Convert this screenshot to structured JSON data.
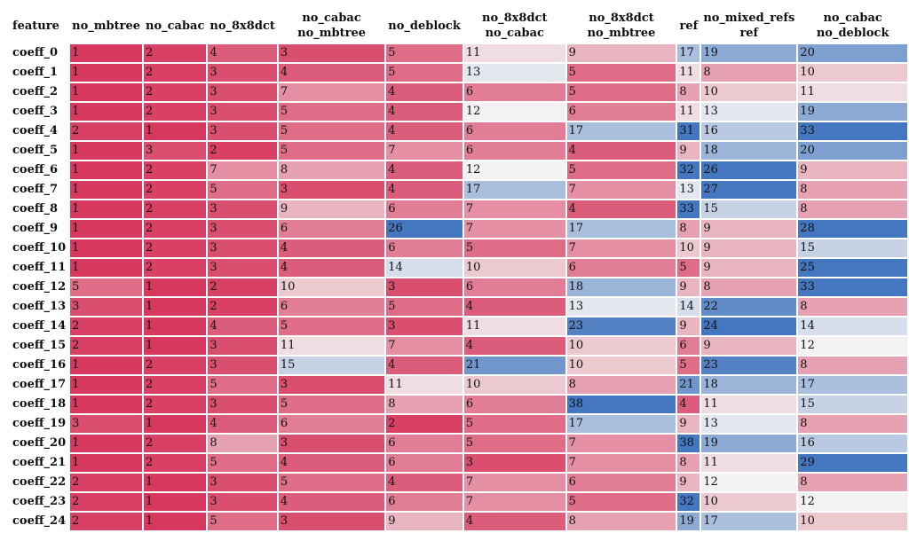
{
  "chart_data": {
    "type": "table",
    "row_header": "feature",
    "columns": [
      [
        "no_mbtree"
      ],
      [
        "no_cabac"
      ],
      [
        "no_8x8dct"
      ],
      [
        "no_cabac",
        "no_mbtree"
      ],
      [
        "no_deblock"
      ],
      [
        "no_8x8dct",
        "no_cabac"
      ],
      [
        "no_8x8dct",
        "no_mbtree"
      ],
      [
        "ref"
      ],
      [
        "no_mixed_refs",
        "ref"
      ],
      [
        "no_cabac",
        "no_deblock"
      ]
    ],
    "rows": [
      "coeff_0",
      "coeff_1",
      "coeff_2",
      "coeff_3",
      "coeff_4",
      "coeff_5",
      "coeff_6",
      "coeff_7",
      "coeff_8",
      "coeff_9",
      "coeff_10",
      "coeff_11",
      "coeff_12",
      "coeff_13",
      "coeff_14",
      "coeff_15",
      "coeff_16",
      "coeff_17",
      "coeff_18",
      "coeff_19",
      "coeff_20",
      "coeff_21",
      "coeff_22",
      "coeff_23",
      "coeff_24"
    ],
    "values": [
      [
        1,
        2,
        4,
        3,
        5,
        11,
        9,
        17,
        19,
        20
      ],
      [
        1,
        2,
        3,
        4,
        5,
        13,
        5,
        11,
        8,
        10
      ],
      [
        1,
        2,
        3,
        7,
        4,
        6,
        5,
        8,
        10,
        11
      ],
      [
        1,
        2,
        3,
        5,
        4,
        12,
        6,
        11,
        13,
        19
      ],
      [
        2,
        1,
        3,
        5,
        4,
        6,
        17,
        31,
        16,
        33
      ],
      [
        1,
        3,
        2,
        5,
        7,
        6,
        4,
        9,
        18,
        20
      ],
      [
        1,
        2,
        7,
        8,
        4,
        12,
        5,
        32,
        26,
        9
      ],
      [
        1,
        2,
        5,
        3,
        4,
        17,
        7,
        13,
        27,
        8
      ],
      [
        1,
        2,
        3,
        9,
        6,
        7,
        4,
        33,
        15,
        8
      ],
      [
        1,
        2,
        3,
        6,
        26,
        7,
        17,
        8,
        9,
        28
      ],
      [
        1,
        2,
        3,
        4,
        6,
        5,
        7,
        10,
        9,
        15
      ],
      [
        1,
        2,
        3,
        4,
        14,
        10,
        6,
        5,
        9,
        25
      ],
      [
        5,
        1,
        2,
        10,
        3,
        6,
        18,
        9,
        8,
        33
      ],
      [
        3,
        1,
        2,
        6,
        5,
        4,
        13,
        14,
        22,
        8
      ],
      [
        2,
        1,
        4,
        5,
        3,
        11,
        23,
        9,
        24,
        14
      ],
      [
        2,
        1,
        3,
        11,
        7,
        4,
        10,
        6,
        9,
        12
      ],
      [
        1,
        2,
        3,
        15,
        4,
        21,
        10,
        5,
        23,
        8
      ],
      [
        1,
        2,
        5,
        3,
        11,
        10,
        8,
        21,
        18,
        17
      ],
      [
        1,
        2,
        3,
        5,
        8,
        6,
        38,
        4,
        11,
        15
      ],
      [
        3,
        1,
        4,
        6,
        2,
        5,
        17,
        9,
        13,
        8
      ],
      [
        1,
        2,
        8,
        3,
        6,
        5,
        7,
        38,
        19,
        16
      ],
      [
        1,
        2,
        5,
        4,
        6,
        3,
        7,
        8,
        11,
        29
      ],
      [
        2,
        1,
        3,
        5,
        4,
        7,
        6,
        9,
        12,
        8
      ],
      [
        2,
        1,
        3,
        4,
        6,
        7,
        5,
        32,
        10,
        12
      ],
      [
        2,
        1,
        5,
        3,
        9,
        4,
        8,
        19,
        17,
        10
      ]
    ],
    "color_scale": {
      "low": "#d7385e",
      "mid": "#f2f2f2",
      "high": "#4477bf"
    },
    "grid": false,
    "legend": "none"
  }
}
